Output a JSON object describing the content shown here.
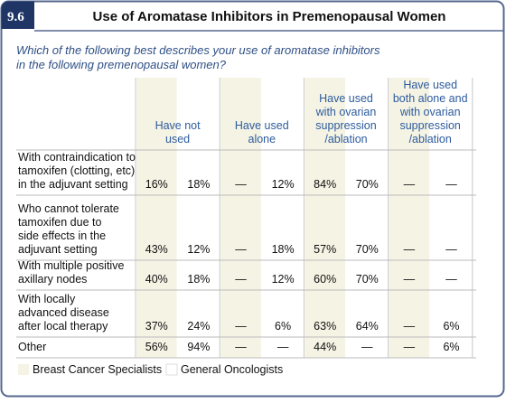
{
  "header": {
    "badge": "9.6",
    "title": "Use of Aromatase Inhibitors in Premenopausal Women"
  },
  "question": [
    "Which of the following best describes your use of aromatase inhibitors",
    "in the following premenopausal women?"
  ],
  "table": {
    "columns": [
      [
        "Have not",
        "used"
      ],
      [
        "Have used",
        "alone"
      ],
      [
        "Have used",
        "with ovarian",
        "suppression",
        "/ablation"
      ],
      [
        "Have used",
        "both alone and",
        "with ovarian",
        "suppression",
        "/ablation"
      ]
    ],
    "rows": [
      {
        "label": [
          "With contraindication to",
          "tamoxifen (clotting, etc)",
          "in the adjuvant setting"
        ],
        "cells": [
          "16%",
          "18%",
          "—",
          "12%",
          "84%",
          "70%",
          "—",
          "—"
        ]
      },
      {
        "label": [
          "Who cannot tolerate",
          "tamoxifen due to",
          "side effects in the",
          "adjuvant setting"
        ],
        "cells": [
          "43%",
          "12%",
          "—",
          "18%",
          "57%",
          "70%",
          "—",
          "—"
        ]
      },
      {
        "label": [
          "With multiple positive",
          "axillary nodes"
        ],
        "cells": [
          "40%",
          "18%",
          "—",
          "12%",
          "60%",
          "70%",
          "—",
          "—"
        ]
      },
      {
        "label": [
          "With locally",
          "advanced disease",
          "after local therapy"
        ],
        "cells": [
          "37%",
          "24%",
          "—",
          "6%",
          "63%",
          "64%",
          "—",
          "6%"
        ]
      },
      {
        "label": [
          "Other"
        ],
        "cells": [
          "56%",
          "94%",
          "—",
          "—",
          "44%",
          "—",
          "—",
          "6%"
        ]
      }
    ]
  },
  "legend": [
    "Breast Cancer Specialists",
    "General Oncologists"
  ]
}
